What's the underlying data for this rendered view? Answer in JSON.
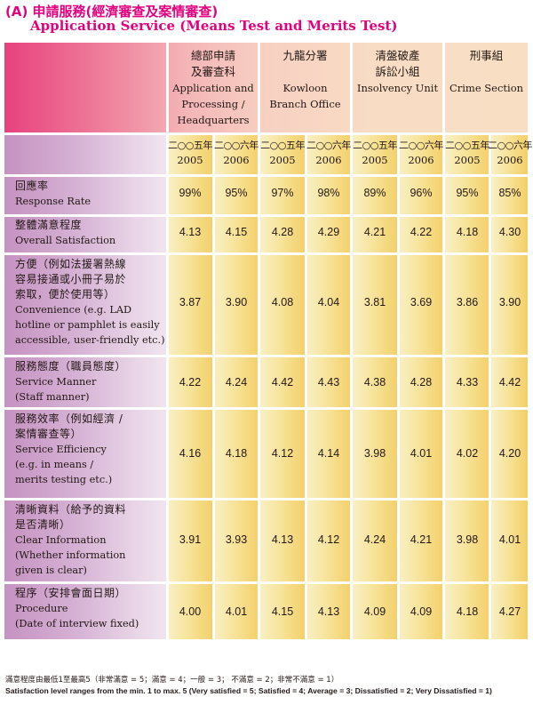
{
  "title": {
    "cn": "(A) 申請服務(經濟審查及案情審查)",
    "en": "Application Service (Means Test and Merits Test)"
  },
  "regions": [
    {
      "cn": "總部申請\n及審查科",
      "en": "Application and\nProcessing /\nHeadquarters"
    },
    {
      "cn": "九龍分署",
      "en": "Kowloon\nBranch Office"
    },
    {
      "cn": "清盤破產\n訴訟小組",
      "en": "Insolvency Unit"
    },
    {
      "cn": "刑事組",
      "en": "Crime  Section"
    }
  ],
  "years": [
    {
      "cn": "二○○五年",
      "en": "2005"
    },
    {
      "cn": "二○○六年",
      "en": "2006"
    }
  ],
  "rows": [
    {
      "cn": "回應率",
      "en": "Response Rate",
      "values": [
        "99%",
        "95%",
        "97%",
        "98%",
        "89%",
        "96%",
        "95%",
        "85%"
      ]
    },
    {
      "cn": "整體滿意程度",
      "en": "Overall Satisfaction",
      "values": [
        "4.13",
        "4.15",
        "4.28",
        "4.29",
        "4.21",
        "4.22",
        "4.18",
        "4.30"
      ]
    },
    {
      "cn": "方便（例如法援署熱線\n容易接通或小冊子易於\n索取，便於使用等）",
      "en": "Convenience (e.g. LAD\nhotline or pamphlet is easily\naccessible, user-friendly etc.)",
      "values": [
        "3.87",
        "3.90",
        "4.08",
        "4.04",
        "3.81",
        "3.69",
        "3.86",
        "3.90"
      ]
    },
    {
      "cn": "服務態度（職員態度）",
      "en": "Service Manner\n(Staff manner)",
      "values": [
        "4.22",
        "4.24",
        "4.42",
        "4.43",
        "4.38",
        "4.28",
        "4.33",
        "4.42"
      ]
    },
    {
      "cn": "服務效率（例如經濟 /\n案情審查等）",
      "en": "Service Efficiency\n(e.g. in means /\nmerits testing etc.)",
      "values": [
        "4.16",
        "4.18",
        "4.12",
        "4.14",
        "3.98",
        "4.01",
        "4.02",
        "4.20"
      ]
    },
    {
      "cn": "清晰資料（給予的資料\n是否清晰）",
      "en": "Clear Information\n(Whether information\ngiven is clear)",
      "values": [
        "3.91",
        "3.93",
        "4.13",
        "4.12",
        "4.24",
        "4.21",
        "3.98",
        "4.01"
      ]
    },
    {
      "cn": "程序（安排會面日期）",
      "en": "Procedure\n(Date of interview fixed)",
      "values": [
        "4.00",
        "4.01",
        "4.15",
        "4.13",
        "4.09",
        "4.09",
        "4.18",
        "4.27"
      ]
    }
  ],
  "footnote": {
    "cn": "滿意程度由最低1至最高5（非常滿意 = 5；滿意 = 4；一般 = 3；  不滿意 = 2；非常不滿意 = 1）",
    "en": "Satisfaction level ranges from the min. 1 to max. 5 (Very satisfied = 5; Satisfied = 4; Average = 3; Dissatisfied = 2; Very Dissatisfied = 1)"
  }
}
